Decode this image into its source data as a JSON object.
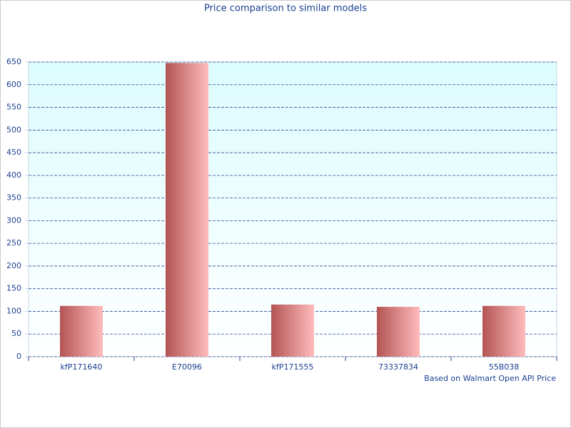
{
  "chart_data": {
    "type": "bar",
    "title": "Price comparison to similar models",
    "categories": [
      "kfP171640",
      "E70096",
      "kfP171555",
      "73337834",
      "55B038"
    ],
    "values": [
      112,
      648,
      115,
      110,
      112
    ],
    "color": "#b45454",
    "ylim": [
      0,
      650
    ],
    "yticks": [
      0,
      50,
      100,
      150,
      200,
      250,
      300,
      350,
      400,
      450,
      500,
      550,
      600,
      650
    ],
    "grid": true,
    "note": "Based on Walmart Open API Price"
  }
}
